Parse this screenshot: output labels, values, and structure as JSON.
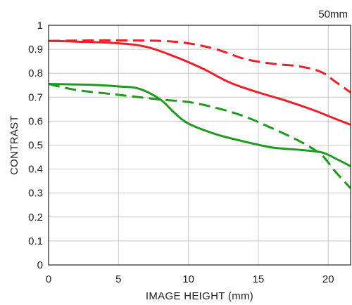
{
  "chart_data": {
    "type": "line",
    "title": "",
    "annotation": "50mm",
    "xlabel": "IMAGE HEIGHT (mm)",
    "ylabel": "CONTRAST",
    "xlim": [
      0,
      21.6
    ],
    "ylim": [
      0,
      1
    ],
    "xticks": [
      0,
      5,
      10,
      15,
      20
    ],
    "xtick_labels": [
      "0",
      "5",
      "10",
      "15",
      "20"
    ],
    "yticks": [
      0,
      0.1,
      0.2,
      0.3,
      0.4,
      0.5,
      0.6,
      0.7,
      0.8,
      0.9,
      1
    ],
    "ytick_labels": [
      "0",
      "0.1",
      "0.2",
      "0.3",
      "0.4",
      "0.5",
      "0.6",
      "0.7",
      "0.8",
      "0.9",
      "1"
    ],
    "grid": true,
    "legend": "none",
    "series": [
      {
        "color": "#e8222a",
        "dash": "solid",
        "points": [
          [
            0,
            0.935
          ],
          [
            2,
            0.932
          ],
          [
            5,
            0.925
          ],
          [
            7,
            0.91
          ],
          [
            9,
            0.87
          ],
          [
            11,
            0.82
          ],
          [
            13,
            0.76
          ],
          [
            15,
            0.72
          ],
          [
            17,
            0.685
          ],
          [
            19,
            0.645
          ],
          [
            20.5,
            0.61
          ],
          [
            21.6,
            0.585
          ]
        ]
      },
      {
        "color": "#e8222a",
        "dash": "dashed",
        "points": [
          [
            0,
            0.935
          ],
          [
            3,
            0.937
          ],
          [
            5,
            0.937
          ],
          [
            8,
            0.935
          ],
          [
            10,
            0.925
          ],
          [
            12,
            0.9
          ],
          [
            14,
            0.86
          ],
          [
            16,
            0.84
          ],
          [
            18,
            0.828
          ],
          [
            19.5,
            0.805
          ],
          [
            20.5,
            0.765
          ],
          [
            21.6,
            0.72
          ]
        ]
      },
      {
        "color": "#1f9a1f",
        "dash": "solid",
        "points": [
          [
            0,
            0.755
          ],
          [
            3,
            0.752
          ],
          [
            5,
            0.745
          ],
          [
            6.5,
            0.735
          ],
          [
            8,
            0.69
          ],
          [
            9,
            0.635
          ],
          [
            10,
            0.59
          ],
          [
            12,
            0.545
          ],
          [
            14,
            0.515
          ],
          [
            16,
            0.49
          ],
          [
            18,
            0.48
          ],
          [
            19.5,
            0.47
          ],
          [
            20.5,
            0.445
          ],
          [
            21.6,
            0.412
          ]
        ]
      },
      {
        "color": "#1f9a1f",
        "dash": "dashed",
        "points": [
          [
            0,
            0.755
          ],
          [
            2,
            0.73
          ],
          [
            5,
            0.71
          ],
          [
            8,
            0.69
          ],
          [
            10,
            0.68
          ],
          [
            12,
            0.655
          ],
          [
            14,
            0.62
          ],
          [
            16,
            0.57
          ],
          [
            18,
            0.515
          ],
          [
            19.5,
            0.46
          ],
          [
            20.5,
            0.39
          ],
          [
            21.6,
            0.32
          ]
        ]
      }
    ]
  }
}
